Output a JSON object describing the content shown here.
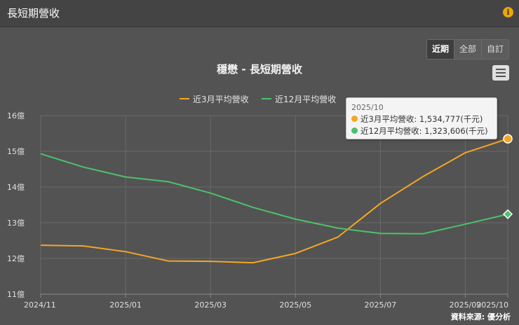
{
  "header": {
    "title": "長短期營收",
    "info_icon": "info-icon"
  },
  "range_buttons": [
    {
      "label": "近期",
      "active": true
    },
    {
      "label": "全部",
      "active": false
    },
    {
      "label": "自訂",
      "active": false
    }
  ],
  "menu_icon": "hamburger-menu-icon",
  "tooltip": {
    "date": "2025/10",
    "rows": [
      {
        "label": "近3月平均營收: 1,534,777(千元)",
        "color": "#f5a623"
      },
      {
        "label": "近12月平均營收: 1,323,606(千元)",
        "color": "#4cc26a"
      }
    ]
  },
  "credits": "資料來源: 優分析",
  "colors": {
    "series1": "#f5a623",
    "series2": "#4cc26a",
    "background": "#535353",
    "grid": "#6a6a6a"
  },
  "chart_data": {
    "type": "line",
    "title": "穩懋 - 長短期營收",
    "x": [
      "2024/11",
      "2024/12",
      "2025/01",
      "2025/02",
      "2025/03",
      "2025/04",
      "2025/05",
      "2025/06",
      "2025/07",
      "2025/08",
      "2025/09",
      "2025/10"
    ],
    "x_tick_labels": [
      "2024/11",
      "2025/01",
      "2025/03",
      "2025/05",
      "2025/07",
      "2025/09",
      "2025/10"
    ],
    "y_tick_labels": [
      "11億",
      "12億",
      "13億",
      "14億",
      "15億",
      "16億"
    ],
    "y_ticks": [
      11,
      12,
      13,
      14,
      15,
      16
    ],
    "ylim": [
      11,
      16
    ],
    "y_unit": "億",
    "grid": true,
    "legend": "top-center",
    "series": [
      {
        "name": "近3月平均營收",
        "color": "#f5a623",
        "marker": "circle",
        "values": [
          12.37,
          12.35,
          12.19,
          11.93,
          11.92,
          11.88,
          12.14,
          12.6,
          13.54,
          14.29,
          14.96,
          15.35
        ]
      },
      {
        "name": "近12月平均營收",
        "color": "#4cc26a",
        "marker": "diamond",
        "values": [
          14.93,
          14.56,
          14.28,
          14.15,
          13.83,
          13.43,
          13.1,
          12.85,
          12.7,
          12.69,
          12.96,
          13.24
        ]
      }
    ]
  }
}
